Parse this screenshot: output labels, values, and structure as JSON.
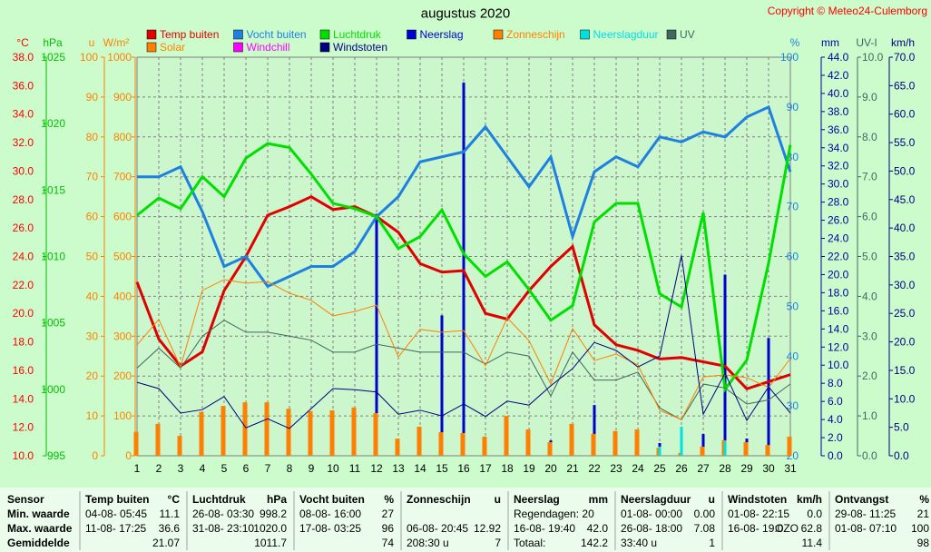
{
  "chart_data": {
    "type": "line",
    "title": "augustus 2020",
    "copyright": "Copyright © Meteo24-Culemborg",
    "x": [
      1,
      2,
      3,
      4,
      5,
      6,
      7,
      8,
      9,
      10,
      11,
      12,
      13,
      14,
      15,
      16,
      17,
      18,
      19,
      20,
      21,
      22,
      23,
      24,
      25,
      26,
      27,
      28,
      29,
      30,
      31
    ],
    "xlim": [
      1,
      31
    ],
    "xticks": [
      1,
      2,
      3,
      4,
      5,
      6,
      7,
      8,
      9,
      10,
      11,
      12,
      13,
      14,
      15,
      16,
      17,
      18,
      19,
      20,
      21,
      22,
      23,
      24,
      25,
      26,
      27,
      28,
      29,
      30,
      31
    ],
    "grid": true,
    "axes": [
      {
        "id": "C",
        "side": "left",
        "unit": "°C",
        "color": "#ff0000",
        "lim": [
          10,
          38
        ],
        "ticks": [
          {
            "value": 10,
            "label": "10.0"
          },
          {
            "value": 12,
            "label": "12.0"
          },
          {
            "value": 14,
            "label": "14.0"
          },
          {
            "value": 16,
            "label": "16.0"
          },
          {
            "value": 18,
            "label": "18.0"
          },
          {
            "value": 20,
            "label": "20.0"
          },
          {
            "value": 22,
            "label": "22.0"
          },
          {
            "value": 24,
            "label": "24.0"
          },
          {
            "value": 26,
            "label": "26.0"
          },
          {
            "value": 28,
            "label": "28.0"
          },
          {
            "value": 30,
            "label": "30.0"
          },
          {
            "value": 32,
            "label": "32.0"
          },
          {
            "value": 34,
            "label": "34.0"
          },
          {
            "value": 36,
            "label": "36.0"
          },
          {
            "value": 38,
            "label": "38.0"
          }
        ]
      },
      {
        "id": "hPa",
        "side": "left",
        "unit": "hPa",
        "color": "#00c000",
        "lim": [
          995,
          1025
        ],
        "ticks": [
          995,
          1000,
          1005,
          1010,
          1015,
          1020,
          1025
        ]
      },
      {
        "id": "u",
        "side": "left",
        "unit": "u",
        "color": "#ff8000",
        "lim": [
          0,
          100
        ],
        "ticks": [
          0,
          10,
          20,
          30,
          40,
          50,
          60,
          70,
          80,
          90,
          100
        ]
      },
      {
        "id": "W",
        "side": "left",
        "unit": "W/m²",
        "color": "#ff8000",
        "lim": [
          0,
          1000
        ],
        "ticks": [
          0,
          100,
          200,
          300,
          400,
          500,
          600,
          700,
          800,
          900,
          1000
        ]
      },
      {
        "id": "pct",
        "side": "right",
        "unit": "%",
        "color": "#1e80e0",
        "lim": [
          20,
          100
        ],
        "ticks": [
          20,
          30,
          40,
          50,
          60,
          70,
          80,
          90,
          100
        ]
      },
      {
        "id": "mm",
        "side": "right",
        "unit": "mm",
        "color": "#0000a0",
        "lim": [
          0,
          44
        ],
        "ticks": [
          {
            "value": 0,
            "label": "0.0"
          },
          {
            "value": 2,
            "label": "2.0"
          },
          {
            "value": 4,
            "label": "4.0"
          },
          {
            "value": 6,
            "label": "6.0"
          },
          {
            "value": 8,
            "label": "8.0"
          },
          {
            "value": 10,
            "label": "10.0"
          },
          {
            "value": 12,
            "label": "12.0"
          },
          {
            "value": 14,
            "label": "14.0"
          },
          {
            "value": 16,
            "label": "16.0"
          },
          {
            "value": 18,
            "label": "18.0"
          },
          {
            "value": 20,
            "label": "20.0"
          },
          {
            "value": 22,
            "label": "22.0"
          },
          {
            "value": 24,
            "label": "24.0"
          },
          {
            "value": 26,
            "label": "26.0"
          },
          {
            "value": 28,
            "label": "28.0"
          },
          {
            "value": 30,
            "label": "30.0"
          },
          {
            "value": 32,
            "label": "32.0"
          },
          {
            "value": 34,
            "label": "34.0"
          },
          {
            "value": 36,
            "label": "36.0"
          },
          {
            "value": 38,
            "label": "38.0"
          },
          {
            "value": 40,
            "label": "40.0"
          },
          {
            "value": 42,
            "label": "42.0"
          },
          {
            "value": 44,
            "label": "44.0"
          }
        ]
      },
      {
        "id": "UV",
        "side": "right",
        "unit": "UV-I",
        "color": "#406860",
        "lim": [
          0,
          10
        ],
        "ticks": [
          {
            "value": 0,
            "label": "0.0"
          },
          {
            "value": 1,
            "label": "1.0"
          },
          {
            "value": 2,
            "label": "2.0"
          },
          {
            "value": 3,
            "label": "3.0"
          },
          {
            "value": 4,
            "label": "4.0"
          },
          {
            "value": 5,
            "label": "5.0"
          },
          {
            "value": 6,
            "label": "6.0"
          },
          {
            "value": 7,
            "label": "7.0"
          },
          {
            "value": 8,
            "label": "8.0"
          },
          {
            "value": 9,
            "label": "9.0"
          },
          {
            "value": 10,
            "label": "10.0"
          }
        ]
      },
      {
        "id": "kmh",
        "side": "right",
        "unit": "km/h",
        "color": "#000080",
        "lim": [
          0,
          70
        ],
        "ticks": [
          {
            "value": 0,
            "label": "0.0"
          },
          {
            "value": 5,
            "label": "5.0"
          },
          {
            "value": 10,
            "label": "10.0"
          },
          {
            "value": 15,
            "label": "15.0"
          },
          {
            "value": 20,
            "label": "20.0"
          },
          {
            "value": 25,
            "label": "25.0"
          },
          {
            "value": 30,
            "label": "30.0"
          },
          {
            "value": 35,
            "label": "35.0"
          },
          {
            "value": 40,
            "label": "40.0"
          },
          {
            "value": 45,
            "label": "45.0"
          },
          {
            "value": 50,
            "label": "50.0"
          },
          {
            "value": 55,
            "label": "55.0"
          },
          {
            "value": 60,
            "label": "60.0"
          },
          {
            "value": 65,
            "label": "65.0"
          },
          {
            "value": 70,
            "label": "70.0"
          }
        ]
      }
    ],
    "series": [
      {
        "name": "Temp buiten",
        "type": "line",
        "axis": "C",
        "color": "#e00000",
        "width": 3,
        "values": [
          22.2,
          18.2,
          16.3,
          17.3,
          21.6,
          24.0,
          26.9,
          27.5,
          28.2,
          27.3,
          27.5,
          26.8,
          25.7,
          23.5,
          22.9,
          23.0,
          20.0,
          19.6,
          21.6,
          23.3,
          24.7,
          19.2,
          17.8,
          17.4,
          16.8,
          16.9,
          16.6,
          16.3,
          14.7,
          15.2,
          15.7
        ]
      },
      {
        "name": "Vocht buiten",
        "type": "line",
        "axis": "pct",
        "color": "#1e80e0",
        "width": 3,
        "values": [
          76,
          76,
          78,
          69,
          58,
          60,
          54,
          56,
          58,
          58,
          61,
          68,
          72,
          79,
          80,
          81,
          86,
          80,
          74,
          80,
          64,
          77,
          80,
          78,
          84,
          83,
          85,
          84,
          88,
          90,
          77
        ]
      },
      {
        "name": "Luchtdruk",
        "type": "line",
        "axis": "hPa",
        "color": "#00e000",
        "width": 3,
        "values": [
          1013.1,
          1014.4,
          1013.6,
          1016.0,
          1014.5,
          1017.4,
          1018.5,
          1018.2,
          1016.2,
          1014.0,
          1013.6,
          1013.0,
          1010.6,
          1011.5,
          1013.5,
          1010.2,
          1008.5,
          1009.6,
          1007.5,
          1005.2,
          1006.3,
          1012.6,
          1014.0,
          1014.0,
          1007.2,
          1006.2,
          1013.3,
          1000.0,
          1002.2,
          1009.5,
          1018.4
        ]
      },
      {
        "name": "Neerslag",
        "type": "bar",
        "axis": "mm",
        "color": "#0000d0",
        "width": 3,
        "offset": 0,
        "values": [
          1.5,
          0,
          2.1,
          0.4,
          0,
          0,
          0,
          0,
          0.4,
          0,
          0,
          26.7,
          0,
          0,
          15.5,
          41.2,
          0.9,
          1.1,
          0.3,
          1.7,
          0,
          5.6,
          1.2,
          1.2,
          1.4,
          0,
          2.4,
          20.0,
          1.9,
          13.0,
          0
        ]
      },
      {
        "name": "Zonneschijn",
        "type": "bar",
        "axis": "u",
        "color": "#ff8000",
        "width": 5,
        "offset": -1,
        "values": [
          6,
          8,
          5,
          11,
          12.5,
          13.4,
          13.4,
          11.8,
          11.2,
          11.4,
          12.1,
          10.7,
          4.3,
          7.3,
          5.9,
          5.7,
          4.8,
          10,
          6.6,
          3.4,
          8,
          5.5,
          6.2,
          6.6,
          2,
          0.7,
          2.3,
          3.9,
          3.4,
          2.7,
          4.8
        ]
      },
      {
        "name": "Neerslagduur",
        "type": "bar",
        "axis": "u",
        "color": "#00e0e0",
        "width": 3,
        "offset": 0,
        "values": [
          0,
          0,
          0,
          0,
          0,
          0,
          0,
          0,
          0,
          0,
          0,
          0,
          0,
          0,
          0,
          0,
          0,
          0,
          0,
          0,
          0,
          0,
          0,
          0,
          2.3,
          7.3,
          0,
          3.6,
          0,
          0,
          0
        ]
      },
      {
        "name": "UV",
        "type": "line",
        "axis": "UV",
        "color": "#406860",
        "width": 1,
        "values": [
          2.2,
          2.7,
          2.2,
          3.0,
          3.4,
          3.1,
          3.1,
          3.0,
          2.9,
          2.6,
          2.6,
          2.8,
          2.7,
          2.6,
          2.6,
          2.6,
          2.3,
          2.6,
          2.5,
          1.5,
          2.6,
          1.9,
          1.9,
          2.1,
          1.2,
          0.9,
          1.8,
          1.7,
          1.3,
          1.4,
          1.8
        ]
      },
      {
        "name": "Solar",
        "type": "line",
        "axis": "W",
        "color": "#ff8000",
        "width": 1,
        "values": [
          278,
          342,
          223,
          415,
          442,
          433,
          437,
          408,
          390,
          351,
          362,
          378,
          248,
          317,
          310,
          314,
          226,
          346,
          289,
          180,
          319,
          239,
          255,
          228,
          114,
          91,
          198,
          203,
          196,
          171,
          244
        ]
      },
      {
        "name": "Windstoten",
        "type": "line",
        "axis": "kmh",
        "color": "#000080",
        "width": 1,
        "values": [
          12.9,
          11.8,
          7.5,
          8.1,
          10.4,
          4.9,
          6.5,
          4.8,
          8.3,
          11.8,
          11.6,
          11.2,
          7.3,
          8.0,
          7.0,
          9.1,
          6.9,
          9.6,
          8.9,
          12.3,
          15.3,
          19.9,
          18.5,
          15.6,
          17.5,
          35.2,
          7.3,
          14.5,
          6.2,
          12.1,
          7.5
        ]
      }
    ],
    "extra_legend": [
      {
        "name": "Windchill",
        "color": "#ff00ff"
      }
    ]
  },
  "summary": {
    "sensor": [
      "Sensor",
      "Min. waarde",
      "Max. waarde",
      "Gemiddelde"
    ],
    "columns": [
      {
        "title": "Temp buiten",
        "unit": "°C",
        "rows": [
          {
            "left": "04-08- 05:45",
            "right": "11.1"
          },
          {
            "left": "11-08- 17:25",
            "right": "36.6"
          },
          {
            "right": "21.07"
          }
        ]
      },
      {
        "title": "Luchtdruk",
        "unit": "hPa",
        "rows": [
          {
            "left": "26-08- 03:30",
            "right": "998.2"
          },
          {
            "left": "31-08- 23:10",
            "right": "1020.0"
          },
          {
            "right": "1011.7"
          }
        ]
      },
      {
        "title": "Vocht buiten",
        "unit": "%",
        "rows": [
          {
            "left": "08-08- 16:00",
            "right": "27"
          },
          {
            "left": "17-08- 03:25",
            "right": "96"
          },
          {
            "right": "74"
          }
        ]
      },
      {
        "title": "Zonneschijn",
        "unit": "u",
        "rows": [
          null,
          {
            "left": "06-08- 20:45",
            "right": "12.92"
          },
          {
            "left": "208:30 u",
            "right": "7"
          }
        ]
      },
      {
        "title": "Neerslag",
        "unit": "mm",
        "rows": [
          {
            "left": "Regendagen: 20"
          },
          {
            "left": "16-08- 19:40",
            "right": "42.0"
          },
          {
            "left": "Totaal:",
            "right": "142.2"
          }
        ]
      },
      {
        "title": "Neerslagduur",
        "unit": "u",
        "rows": [
          {
            "left": "01-08- 00:00",
            "right": "0.00"
          },
          {
            "left": "26-08- 18:00",
            "right": "7.08"
          },
          {
            "left": "33:40 u",
            "right": "1"
          }
        ]
      },
      {
        "title": "Windstoten",
        "unit": "km/h",
        "rows": [
          {
            "left": "01-08- 22:15",
            "right": "0.0"
          },
          {
            "left": "16-08- 19:0",
            "dir": "OZO",
            "right": "62.8"
          },
          {
            "right": "11.4"
          }
        ]
      },
      {
        "title": "Ontvangst",
        "unit": "%",
        "rows": [
          {
            "left": "29-08- 11:25",
            "right": "21"
          },
          {
            "left": "01-08- 07:10",
            "right": "100"
          },
          {
            "right": "98"
          }
        ]
      }
    ]
  }
}
